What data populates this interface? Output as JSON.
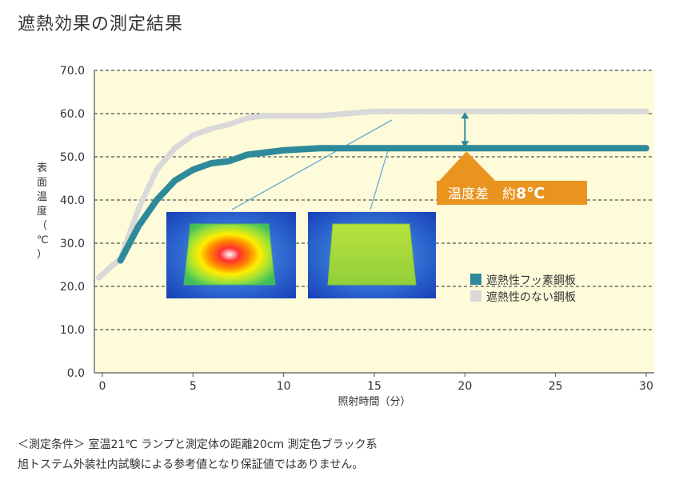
{
  "page_title": "遮熱効果の測定結果",
  "chart_data": {
    "type": "line",
    "title": "",
    "xlabel": "照射時間（分）",
    "ylabel": "表面温度（℃）",
    "xlim": [
      0,
      30
    ],
    "ylim": [
      0,
      70
    ],
    "x_ticks": [
      "0",
      "5",
      "10",
      "15",
      "20",
      "25",
      "30"
    ],
    "y_ticks": [
      "0.0",
      "10.0",
      "20.0",
      "30.0",
      "40.0",
      "50.0",
      "60.0",
      "70.0"
    ],
    "grid": true,
    "legend_position": "right",
    "series": [
      {
        "name": "遮熱性フッ素鋼板",
        "color": "#2e8a9a",
        "x": [
          1,
          2,
          3,
          4,
          5,
          6,
          7,
          8,
          9,
          10,
          12,
          15,
          20,
          25,
          30
        ],
        "y": [
          26,
          34,
          40,
          44.5,
          47,
          48.5,
          49,
          50.5,
          51,
          51.5,
          52,
          52,
          52,
          52,
          52
        ]
      },
      {
        "name": "遮熱性のない鋼板",
        "color": "#d9d9d9",
        "x": [
          -0.2,
          1,
          2,
          3,
          4,
          5,
          6,
          7,
          8,
          9,
          10,
          12,
          15,
          20,
          25,
          30
        ],
        "y": [
          22,
          26.5,
          38,
          47,
          52,
          55,
          56.5,
          57.5,
          59,
          59.5,
          59.5,
          59.5,
          60.5,
          60.5,
          60.5,
          60.5
        ]
      }
    ],
    "annotation": {
      "label": "温度差　約",
      "value": "8℃",
      "x": 20,
      "from_y": 52,
      "to_y": 60.5
    }
  },
  "notes": [
    "＜測定条件＞ 室温21℃ ランプと測定体の距離20cm 測定色ブラック系",
    "旭トステム外装社内試験による参考値となり保証値ではありません。"
  ],
  "colors": {
    "plot_bg": "#fdfbd9",
    "axis": "#555555",
    "annotation_bg": "#e8941f"
  },
  "thermal_images": [
    "thermal-image-unshielded",
    "thermal-image-shielded"
  ]
}
